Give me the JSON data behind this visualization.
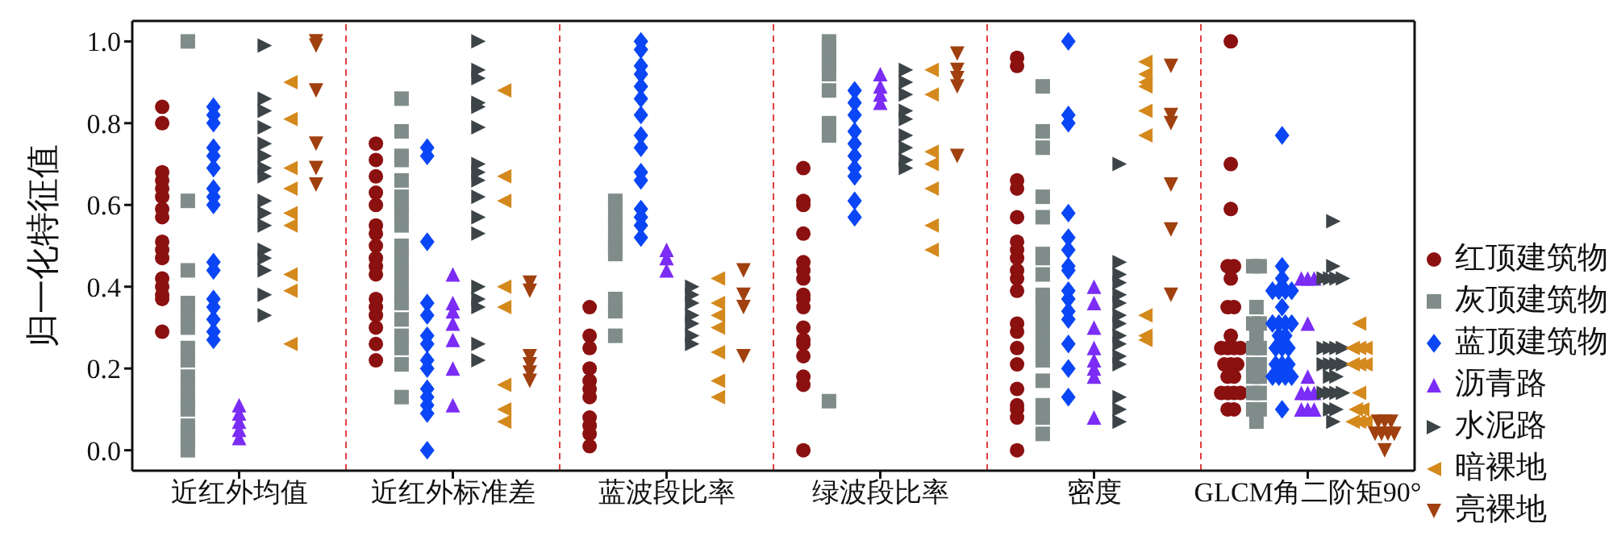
{
  "chart_data": {
    "type": "scatter",
    "ylabel": "归一化特征值",
    "categories": [
      "近红外均值",
      "近红外标准差",
      "蓝波段比率",
      "绿波段比率",
      "密度",
      "GLCM角二阶矩90°"
    ],
    "ylim": [
      -0.05,
      1.05
    ],
    "yticks": [
      {
        "value": 0,
        "label": "0.0"
      },
      {
        "value": 0.2,
        "label": "0.2"
      },
      {
        "value": 0.4,
        "label": "0.4"
      },
      {
        "value": 0.6,
        "label": "0.6"
      },
      {
        "value": 0.8,
        "label": "0.8"
      },
      {
        "value": 1,
        "label": "1.0"
      }
    ],
    "grid": false,
    "legend": "right",
    "series": [
      {
        "name": "红顶建筑物",
        "color": "#8b1010",
        "marker": "circle",
        "x": [
          "近红外均值",
          "近红外均值",
          "近红外均值",
          "近红外均值",
          "近红外均值",
          "近红外均值",
          "近红外均值",
          "近红外均值",
          "近红外均值",
          "近红外均值",
          "近红外均值",
          "近红外均值",
          "近红外均值",
          "近红外均值",
          "近红外均值",
          "近红外均值",
          "近红外标准差",
          "近红外标准差",
          "近红外标准差",
          "近红外标准差",
          "近红外标准差",
          "近红外标准差",
          "近红外标准差",
          "近红外标准差",
          "近红外标准差",
          "近红外标准差",
          "近红外标准差",
          "近红外标准差",
          "近红外标准差",
          "近红外标准差",
          "近红外标准差",
          "近红外标准差",
          "近红外标准差",
          "蓝波段比率",
          "蓝波段比率",
          "蓝波段比率",
          "蓝波段比率",
          "蓝波段比率",
          "蓝波段比率",
          "蓝波段比率",
          "蓝波段比率",
          "蓝波段比率",
          "蓝波段比率",
          "蓝波段比率",
          "绿波段比率",
          "绿波段比率",
          "绿波段比率",
          "绿波段比率",
          "绿波段比率",
          "绿波段比率",
          "绿波段比率",
          "绿波段比率",
          "绿波段比率",
          "绿波段比率",
          "绿波段比率",
          "绿波段比率",
          "绿波段比率",
          "绿波段比率",
          "绿波段比率",
          "绿波段比率",
          "绿波段比率",
          "密度",
          "密度",
          "密度",
          "密度",
          "密度",
          "密度",
          "密度",
          "密度",
          "密度",
          "密度",
          "密度",
          "密度",
          "密度",
          "密度",
          "密度",
          "密度",
          "密度",
          "密度",
          "密度",
          "密度",
          "GLCM角二阶矩90°",
          "GLCM角二阶矩90°",
          "GLCM角二阶矩90°",
          "GLCM角二阶矩90°",
          "GLCM角二阶矩90°",
          "GLCM角二阶矩90°",
          "GLCM角二阶矩90°",
          "GLCM角二阶矩90°",
          "GLCM角二阶矩90°",
          "GLCM角二阶矩90°",
          "GLCM角二阶矩90°",
          "GLCM角二阶矩90°",
          "GLCM角二阶矩90°",
          "GLCM角二阶矩90°",
          "GLCM角二阶矩90°",
          "GLCM角二阶矩90°",
          "GLCM角二阶矩90°",
          "GLCM角二阶矩90°",
          "GLCM角二阶矩90°",
          "GLCM角二阶矩90°",
          "GLCM角二阶矩90°",
          "GLCM角二阶矩90°",
          "GLCM角二阶矩90°",
          "GLCM角二阶矩90°"
        ],
        "values": [
          0.84,
          0.8,
          0.68,
          0.66,
          0.64,
          0.62,
          0.59,
          0.57,
          0.51,
          0.49,
          0.47,
          0.42,
          0.4,
          0.38,
          0.37,
          0.29,
          0.75,
          0.71,
          0.67,
          0.63,
          0.6,
          0.55,
          0.53,
          0.5,
          0.47,
          0.45,
          0.43,
          0.37,
          0.35,
          0.33,
          0.3,
          0.26,
          0.22,
          0.35,
          0.28,
          0.25,
          0.2,
          0.17,
          0.15,
          0.13,
          0.08,
          0.06,
          0.04,
          0.01,
          0.69,
          0.61,
          0.6,
          0.53,
          0.46,
          0.44,
          0.42,
          0.38,
          0.37,
          0.35,
          0.3,
          0.27,
          0.26,
          0.23,
          0.18,
          0.16,
          0.0,
          0.96,
          0.94,
          0.66,
          0.64,
          0.57,
          0.51,
          0.49,
          0.47,
          0.44,
          0.42,
          0.39,
          0.31,
          0.29,
          0.25,
          0.21,
          0.15,
          0.11,
          0.1,
          0.08,
          0.0,
          1.0,
          0.7,
          0.59,
          0.45,
          0.45,
          0.42,
          0.35,
          0.35,
          0.28,
          0.25,
          0.25,
          0.25,
          0.25,
          0.21,
          0.21,
          0.21,
          0.18,
          0.18,
          0.14,
          0.14,
          0.14,
          0.14,
          0.1,
          0.1
        ]
      },
      {
        "name": "灰顶建筑物",
        "color": "#7f8c8a",
        "marker": "square",
        "x": [
          "近红外均值",
          "近红外均值",
          "近红外均值",
          "近红外均值",
          "近红外均值",
          "近红外均值",
          "近红外均值",
          "近红外均值",
          "近红外均值",
          "近红外均值",
          "近红外均值",
          "近红外均值",
          "近红外均值",
          "近红外均值",
          "近红外均值",
          "近红外均值",
          "近红外标准差",
          "近红外标准差",
          "近红外标准差",
          "近红外标准差",
          "近红外标准差",
          "近红外标准差",
          "近红外标准差",
          "近红外标准差",
          "近红外标准差",
          "近红外标准差",
          "近红外标准差",
          "近红外标准差",
          "近红外标准差",
          "近红外标准差",
          "近红外标准差",
          "近红外标准差",
          "近红外标准差",
          "近红外标准差",
          "近红外标准差",
          "近红外标准差",
          "蓝波段比率",
          "蓝波段比率",
          "蓝波段比率",
          "蓝波段比率",
          "蓝波段比率",
          "蓝波段比率",
          "蓝波段比率",
          "蓝波段比率",
          "蓝波段比率",
          "绿波段比率",
          "绿波段比率",
          "绿波段比率",
          "绿波段比率",
          "绿波段比率",
          "绿波段比率",
          "绿波段比率",
          "绿波段比率",
          "绿波段比率",
          "密度",
          "密度",
          "密度",
          "密度",
          "密度",
          "密度",
          "密度",
          "密度",
          "密度",
          "密度",
          "密度",
          "密度",
          "密度",
          "密度",
          "密度",
          "密度",
          "密度",
          "密度",
          "密度",
          "GLCM角二阶矩90°",
          "GLCM角二阶矩90°",
          "GLCM角二阶矩90°",
          "GLCM角二阶矩90°",
          "GLCM角二阶矩90°",
          "GLCM角二阶矩90°",
          "GLCM角二阶矩90°",
          "GLCM角二阶矩90°",
          "GLCM角二阶矩90°",
          "GLCM角二阶矩90°",
          "GLCM角二阶矩90°",
          "GLCM角二阶矩90°",
          "GLCM角二阶矩90°",
          "GLCM角二阶矩90°",
          "GLCM角二阶矩90°",
          "GLCM角二阶矩90°",
          "GLCM角二阶矩90°"
        ],
        "values": [
          1.0,
          0.61,
          0.44,
          0.36,
          0.33,
          0.3,
          0.25,
          0.22,
          0.18,
          0.15,
          0.12,
          0.1,
          0.06,
          0.04,
          0.02,
          0.0,
          0.86,
          0.78,
          0.72,
          0.71,
          0.66,
          0.62,
          0.6,
          0.58,
          0.55,
          0.5,
          0.47,
          0.44,
          0.41,
          0.38,
          0.36,
          0.32,
          0.28,
          0.25,
          0.21,
          0.13,
          0.61,
          0.58,
          0.55,
          0.52,
          0.5,
          0.48,
          0.37,
          0.34,
          0.28,
          1.0,
          0.98,
          0.96,
          0.94,
          0.92,
          0.88,
          0.8,
          0.77,
          0.12,
          0.89,
          0.78,
          0.74,
          0.62,
          0.57,
          0.48,
          0.47,
          0.43,
          0.38,
          0.36,
          0.33,
          0.3,
          0.27,
          0.25,
          0.22,
          0.17,
          0.11,
          0.08,
          0.04,
          0.45,
          0.45,
          0.35,
          0.31,
          0.31,
          0.28,
          0.25,
          0.25,
          0.21,
          0.21,
          0.18,
          0.18,
          0.14,
          0.14,
          0.1,
          0.1,
          0.07
        ]
      },
      {
        "name": "蓝顶建筑物",
        "color": "#0a46f5",
        "marker": "diamond",
        "x": [
          "近红外均值",
          "近红外均值",
          "近红外均值",
          "近红外均值",
          "近红外均值",
          "近红外均值",
          "近红外均值",
          "近红外均值",
          "近红外均值",
          "近红外均值",
          "近红外均值",
          "近红外均值",
          "近红外均值",
          "近红外均值",
          "近红外均值",
          "近红外均值",
          "近红外标准差",
          "近红外标准差",
          "近红外标准差",
          "近红外标准差",
          "近红外标准差",
          "近红外标准差",
          "近红外标准差",
          "近红外标准差",
          "近红外标准差",
          "近红外标准差",
          "近红外标准差",
          "近红外标准差",
          "近红外标准差",
          "近红外标准差",
          "蓝波段比率",
          "蓝波段比率",
          "蓝波段比率",
          "蓝波段比率",
          "蓝波段比率",
          "蓝波段比率",
          "蓝波段比率",
          "蓝波段比率",
          "蓝波段比率",
          "蓝波段比率",
          "蓝波段比率",
          "蓝波段比率",
          "蓝波段比率",
          "蓝波段比率",
          "蓝波段比率",
          "绿波段比率",
          "绿波段比率",
          "绿波段比率",
          "绿波段比率",
          "绿波段比率",
          "绿波段比率",
          "绿波段比率",
          "绿波段比率",
          "绿波段比率",
          "绿波段比率",
          "密度",
          "密度",
          "密度",
          "密度",
          "密度",
          "密度",
          "密度",
          "密度",
          "密度",
          "密度",
          "密度",
          "密度",
          "密度",
          "密度",
          "密度",
          "GLCM角二阶矩90°",
          "GLCM角二阶矩90°",
          "GLCM角二阶矩90°",
          "GLCM角二阶矩90°",
          "GLCM角二阶矩90°",
          "GLCM角二阶矩90°",
          "GLCM角二阶矩90°",
          "GLCM角二阶矩90°",
          "GLCM角二阶矩90°",
          "GLCM角二阶矩90°",
          "GLCM角二阶矩90°",
          "GLCM角二阶矩90°",
          "GLCM角二阶矩90°",
          "GLCM角二阶矩90°",
          "GLCM角二阶矩90°",
          "GLCM角二阶矩90°",
          "GLCM角二阶矩90°",
          "GLCM角二阶矩90°",
          "GLCM角二阶矩90°",
          "GLCM角二阶矩90°",
          "GLCM角二阶矩90°",
          "GLCM角二阶矩90°",
          "GLCM角二阶矩90°",
          "GLCM角二阶矩90°",
          "GLCM角二阶矩90°"
        ],
        "values": [
          0.84,
          0.82,
          0.8,
          0.74,
          0.72,
          0.69,
          0.64,
          0.62,
          0.6,
          0.46,
          0.44,
          0.37,
          0.35,
          0.32,
          0.29,
          0.27,
          0.74,
          0.72,
          0.51,
          0.36,
          0.33,
          0.28,
          0.26,
          0.22,
          0.2,
          0.15,
          0.13,
          0.11,
          0.09,
          0.0,
          1.0,
          0.98,
          0.94,
          0.92,
          0.89,
          0.86,
          0.82,
          0.77,
          0.74,
          0.68,
          0.66,
          0.59,
          0.57,
          0.55,
          0.52,
          0.88,
          0.85,
          0.82,
          0.78,
          0.75,
          0.72,
          0.69,
          0.67,
          0.61,
          0.57,
          1.0,
          0.82,
          0.8,
          0.58,
          0.52,
          0.49,
          0.45,
          0.44,
          0.39,
          0.37,
          0.34,
          0.32,
          0.26,
          0.2,
          0.13,
          0.77,
          0.45,
          0.42,
          0.39,
          0.39,
          0.39,
          0.39,
          0.35,
          0.31,
          0.31,
          0.31,
          0.31,
          0.28,
          0.28,
          0.25,
          0.25,
          0.25,
          0.21,
          0.21,
          0.21,
          0.18,
          0.18,
          0.18,
          0.18,
          0.1
        ]
      },
      {
        "name": "沥青路",
        "color": "#7b2cf5",
        "marker": "triangle",
        "x": [
          "近红外均值",
          "近红外均值",
          "近红外均值",
          "近红外均值",
          "近红外均值",
          "近红外标准差",
          "近红外标准差",
          "近红外标准差",
          "近红外标准差",
          "近红外标准差",
          "近红外标准差",
          "近红外标准差",
          "蓝波段比率",
          "蓝波段比率",
          "蓝波段比率",
          "绿波段比率",
          "绿波段比率",
          "绿波段比率",
          "绿波段比率",
          "密度",
          "密度",
          "密度",
          "密度",
          "密度",
          "密度",
          "密度",
          "密度",
          "GLCM角二阶矩90°",
          "GLCM角二阶矩90°",
          "GLCM角二阶矩90°",
          "GLCM角二阶矩90°",
          "GLCM角二阶矩90°",
          "GLCM角二阶矩90°",
          "GLCM角二阶矩90°",
          "GLCM角二阶矩90°",
          "GLCM角二阶矩90°",
          "GLCM角二阶矩90°",
          "GLCM角二阶矩90°"
        ],
        "values": [
          0.11,
          0.09,
          0.07,
          0.05,
          0.03,
          0.43,
          0.36,
          0.34,
          0.31,
          0.27,
          0.2,
          0.11,
          0.49,
          0.47,
          0.44,
          0.92,
          0.89,
          0.87,
          0.85,
          0.4,
          0.36,
          0.3,
          0.25,
          0.22,
          0.2,
          0.18,
          0.08,
          0.42,
          0.42,
          0.42,
          0.31,
          0.18,
          0.14,
          0.14,
          0.14,
          0.1,
          0.1,
          0.1
        ]
      },
      {
        "name": "水泥路",
        "color": "#3c4448",
        "marker": "triangle-right",
        "x": [
          "近红外均值",
          "近红外均值",
          "近红外均值",
          "近红外均值",
          "近红外均值",
          "近红外均值",
          "近红外均值",
          "近红外均值",
          "近红外均值",
          "近红外均值",
          "近红外均值",
          "近红外均值",
          "近红外均值",
          "近红外均值",
          "近红外均值",
          "近红外均值",
          "近红外标准差",
          "近红外标准差",
          "近红外标准差",
          "近红外标准差",
          "近红外标准差",
          "近红外标准差",
          "近红外标准差",
          "近红外标准差",
          "近红外标准差",
          "近红外标准差",
          "近红外标准差",
          "近红外标准差",
          "近红外标准差",
          "近红外标准差",
          "近红外标准差",
          "近红外标准差",
          "近红外标准差",
          "蓝波段比率",
          "蓝波段比率",
          "蓝波段比率",
          "蓝波段比率",
          "蓝波段比率",
          "蓝波段比率",
          "蓝波段比率",
          "绿波段比率",
          "绿波段比率",
          "绿波段比率",
          "绿波段比率",
          "绿波段比率",
          "绿波段比率",
          "绿波段比率",
          "绿波段比率",
          "绿波段比率",
          "密度",
          "密度",
          "密度",
          "密度",
          "密度",
          "密度",
          "密度",
          "密度",
          "密度",
          "密度",
          "密度",
          "密度",
          "密度",
          "密度",
          "密度",
          "GLCM角二阶矩90°",
          "GLCM角二阶矩90°",
          "GLCM角二阶矩90°",
          "GLCM角二阶矩90°",
          "GLCM角二阶矩90°",
          "GLCM角二阶矩90°",
          "GLCM角二阶矩90°",
          "GLCM角二阶矩90°",
          "GLCM角二阶矩90°",
          "GLCM角二阶矩90°",
          "GLCM角二阶矩90°",
          "GLCM角二阶矩90°",
          "GLCM角二阶矩90°",
          "GLCM角二阶矩90°",
          "GLCM角二阶矩90°",
          "GLCM角二阶矩90°",
          "GLCM角二阶矩90°",
          "GLCM角二阶矩90°",
          "GLCM角二阶矩90°",
          "GLCM角二阶矩90°",
          "GLCM角二阶矩90°",
          "GLCM角二阶矩90°",
          "GLCM角二阶矩90°"
        ],
        "values": [
          0.99,
          0.86,
          0.83,
          0.79,
          0.75,
          0.72,
          0.69,
          0.67,
          0.61,
          0.58,
          0.55,
          0.49,
          0.47,
          0.44,
          0.38,
          0.33,
          1.0,
          0.93,
          0.91,
          0.85,
          0.84,
          0.79,
          0.7,
          0.68,
          0.66,
          0.62,
          0.57,
          0.53,
          0.4,
          0.37,
          0.35,
          0.26,
          0.22,
          0.4,
          0.38,
          0.36,
          0.33,
          0.31,
          0.28,
          0.26,
          0.93,
          0.9,
          0.87,
          0.83,
          0.81,
          0.77,
          0.74,
          0.71,
          0.69,
          0.7,
          0.46,
          0.43,
          0.41,
          0.38,
          0.36,
          0.33,
          0.31,
          0.28,
          0.26,
          0.23,
          0.21,
          0.13,
          0.1,
          0.07,
          0.56,
          0.45,
          0.42,
          0.42,
          0.42,
          0.42,
          0.25,
          0.25,
          0.25,
          0.25,
          0.21,
          0.21,
          0.21,
          0.21,
          0.18,
          0.18,
          0.14,
          0.14,
          0.14,
          0.14,
          0.1,
          0.1,
          0.07
        ]
      },
      {
        "name": "暗裸地",
        "color": "#d4891c",
        "marker": "triangle-left",
        "x": [
          "近红外均值",
          "近红外均值",
          "近红外均值",
          "近红外均值",
          "近红外均值",
          "近红外均值",
          "近红外均值",
          "近红外均值",
          "近红外均值",
          "近红外标准差",
          "近红外标准差",
          "近红外标准差",
          "近红外标准差",
          "近红外标准差",
          "近红外标准差",
          "近红外标准差",
          "近红外标准差",
          "蓝波段比率",
          "蓝波段比率",
          "蓝波段比率",
          "蓝波段比率",
          "蓝波段比率",
          "蓝波段比率",
          "蓝波段比率",
          "绿波段比率",
          "绿波段比率",
          "绿波段比率",
          "绿波段比率",
          "绿波段比率",
          "绿波段比率",
          "绿波段比率",
          "密度",
          "密度",
          "密度",
          "密度",
          "密度",
          "密度",
          "密度",
          "密度",
          "密度",
          "GLCM角二阶矩90°",
          "GLCM角二阶矩90°",
          "GLCM角二阶矩90°",
          "GLCM角二阶矩90°",
          "GLCM角二阶矩90°",
          "GLCM角二阶矩90°",
          "GLCM角二阶矩90°",
          "GLCM角二阶矩90°",
          "GLCM角二阶矩90°",
          "GLCM角二阶矩90°",
          "GLCM角二阶矩90°",
          "GLCM角二阶矩90°",
          "GLCM角二阶矩90°"
        ],
        "values": [
          0.9,
          0.81,
          0.69,
          0.64,
          0.58,
          0.55,
          0.43,
          0.39,
          0.26,
          0.88,
          0.67,
          0.61,
          0.4,
          0.35,
          0.16,
          0.1,
          0.07,
          0.42,
          0.36,
          0.33,
          0.3,
          0.24,
          0.17,
          0.13,
          0.93,
          0.87,
          0.73,
          0.7,
          0.64,
          0.55,
          0.49,
          0.95,
          0.92,
          0.9,
          0.89,
          0.83,
          0.77,
          0.33,
          0.28,
          0.27,
          0.31,
          0.25,
          0.25,
          0.25,
          0.21,
          0.21,
          0.21,
          0.14,
          0.1,
          0.1,
          0.07,
          0.07,
          0.07
        ]
      },
      {
        "name": "亮裸地",
        "color": "#a0400f",
        "marker": "triangle-down",
        "x": [
          "近红外均值",
          "近红外均值",
          "近红外均值",
          "近红外均值",
          "近红外均值",
          "近红外均值",
          "近红外标准差",
          "近红外标准差",
          "近红外标准差",
          "近红外标准差",
          "近红外标准差",
          "近红外标准差",
          "蓝波段比率",
          "蓝波段比率",
          "蓝波段比率",
          "蓝波段比率",
          "绿波段比率",
          "绿波段比率",
          "绿波段比率",
          "绿波段比率",
          "绿波段比率",
          "密度",
          "密度",
          "密度",
          "密度",
          "密度",
          "密度",
          "GLCM角二阶矩90°",
          "GLCM角二阶矩90°",
          "GLCM角二阶矩90°",
          "GLCM角二阶矩90°",
          "GLCM角二阶矩90°",
          "GLCM角二阶矩90°",
          "GLCM角二阶矩90°",
          "GLCM角二阶矩90°"
        ],
        "values": [
          1.0,
          0.99,
          0.88,
          0.75,
          0.69,
          0.65,
          0.41,
          0.39,
          0.23,
          0.21,
          0.19,
          0.17,
          0.44,
          0.38,
          0.35,
          0.23,
          0.97,
          0.93,
          0.91,
          0.89,
          0.72,
          0.94,
          0.82,
          0.8,
          0.65,
          0.54,
          0.38,
          0.07,
          0.07,
          0.07,
          0.04,
          0.04,
          0.04,
          0.04,
          0.0
        ]
      }
    ]
  }
}
